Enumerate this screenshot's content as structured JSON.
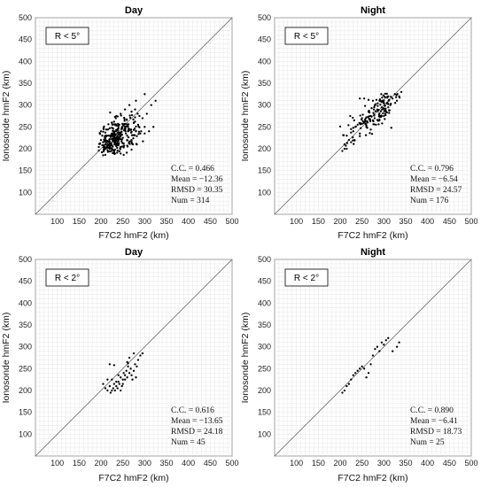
{
  "chart_data": [
    {
      "type": "scatter",
      "title": "Day",
      "xlabel": "F7C2 hmF2 (km)",
      "ylabel": "Ionosonde hmF2 (km)",
      "xlim": [
        50,
        500
      ],
      "ylim": [
        50,
        500
      ],
      "xticks": [
        "100",
        "150",
        "200",
        "250",
        "300",
        "350",
        "400",
        "450",
        "500"
      ],
      "yticks": [
        "100",
        "150",
        "200",
        "250",
        "300",
        "350",
        "400",
        "450",
        "500"
      ],
      "box_label": "R < 5°",
      "diagonal": "y = x",
      "grid": true,
      "stats": [
        "C.C. = 0.466",
        "Mean = −12.36",
        "RMSD = 30.35",
        "Num = 314"
      ],
      "n_points": 314,
      "cluster": {
        "x_range": [
          195,
          330
        ],
        "y_range": [
          185,
          330
        ],
        "center": [
          235,
          225
        ]
      },
      "points": [
        [
          215,
          215
        ],
        [
          220,
          205
        ],
        [
          225,
          230
        ],
        [
          230,
          220
        ],
        [
          235,
          240
        ],
        [
          240,
          210
        ],
        [
          245,
          235
        ],
        [
          250,
          225
        ],
        [
          255,
          250
        ],
        [
          260,
          230
        ],
        [
          265,
          245
        ],
        [
          270,
          220
        ],
        [
          275,
          260
        ],
        [
          280,
          240
        ],
        [
          285,
          255
        ],
        [
          290,
          235
        ],
        [
          295,
          270
        ],
        [
          300,
          250
        ],
        [
          305,
          280
        ],
        [
          310,
          240
        ],
        [
          315,
          300
        ],
        [
          320,
          250
        ],
        [
          325,
          310
        ],
        [
          230,
          195
        ],
        [
          210,
          230
        ],
        [
          205,
          215
        ],
        [
          200,
          240
        ],
        [
          225,
          260
        ],
        [
          235,
          275
        ],
        [
          245,
          280
        ],
        [
          255,
          290
        ],
        [
          265,
          300
        ],
        [
          270,
          285
        ],
        [
          280,
          310
        ],
        [
          300,
          325
        ],
        [
          228,
          222
        ],
        [
          232,
          218
        ],
        [
          222,
          212
        ],
        [
          238,
          228
        ],
        [
          242,
          232
        ]
      ]
    },
    {
      "type": "scatter",
      "title": "Night",
      "xlabel": "F7C2 hmF2 (km)",
      "ylabel": "Ionosonde hmF2 (km)",
      "xlim": [
        50,
        500
      ],
      "ylim": [
        50,
        500
      ],
      "xticks": [
        "100",
        "150",
        "200",
        "250",
        "300",
        "350",
        "400",
        "450",
        "500"
      ],
      "yticks": [
        "100",
        "150",
        "200",
        "250",
        "300",
        "350",
        "400",
        "450",
        "500"
      ],
      "box_label": "R < 5°",
      "diagonal": "y = x",
      "grid": true,
      "stats": [
        "C.C. = 0.796",
        "Mean = −6.54",
        "RMSD = 24.57",
        "Num = 176"
      ],
      "n_points": 176,
      "cluster": {
        "x_range": [
          200,
          345
        ],
        "y_range": [
          190,
          330
        ],
        "center": [
          280,
          280
        ]
      },
      "points": [
        [
          205,
          195
        ],
        [
          210,
          210
        ],
        [
          215,
          230
        ],
        [
          220,
          220
        ],
        [
          225,
          245
        ],
        [
          230,
          240
        ],
        [
          240,
          255
        ],
        [
          245,
          235
        ],
        [
          250,
          270
        ],
        [
          255,
          260
        ],
        [
          260,
          250
        ],
        [
          265,
          285
        ],
        [
          270,
          275
        ],
        [
          275,
          265
        ],
        [
          280,
          300
        ],
        [
          285,
          290
        ],
        [
          290,
          310
        ],
        [
          295,
          295
        ],
        [
          300,
          305
        ],
        [
          305,
          285
        ],
        [
          310,
          320
        ],
        [
          315,
          300
        ],
        [
          320,
          315
        ],
        [
          325,
          325
        ],
        [
          330,
          310
        ],
        [
          335,
          320
        ],
        [
          340,
          330
        ],
        [
          290,
          265
        ],
        [
          300,
          275
        ],
        [
          310,
          295
        ],
        [
          245,
          315
        ],
        [
          255,
          315
        ],
        [
          265,
          312
        ],
        [
          275,
          310
        ],
        [
          235,
          250
        ],
        [
          225,
          215
        ],
        [
          210,
          200
        ]
      ]
    },
    {
      "type": "scatter",
      "title": "Day",
      "xlabel": "F7C2 hmF2 (km)",
      "ylabel": "Ionosonde hmF2 (km)",
      "xlim": [
        50,
        500
      ],
      "ylim": [
        50,
        500
      ],
      "xticks": [
        "100",
        "150",
        "200",
        "250",
        "300",
        "350",
        "400",
        "450",
        "500"
      ],
      "yticks": [
        "100",
        "150",
        "200",
        "250",
        "300",
        "350",
        "400",
        "450",
        "500"
      ],
      "box_label": "R < 2°",
      "diagonal": "y = x",
      "grid": true,
      "stats": [
        "C.C. = 0.616",
        "Mean = −13.65",
        "RMSD = 24.18",
        "Num = 45"
      ],
      "n_points": 45,
      "points": [
        [
          205,
          215
        ],
        [
          210,
          205
        ],
        [
          215,
          200
        ],
        [
          220,
          210
        ],
        [
          222,
          195
        ],
        [
          225,
          225
        ],
        [
          228,
          205
        ],
        [
          230,
          215
        ],
        [
          232,
          200
        ],
        [
          235,
          210
        ],
        [
          238,
          205
        ],
        [
          240,
          220
        ],
        [
          242,
          215
        ],
        [
          245,
          230
        ],
        [
          248,
          210
        ],
        [
          250,
          225
        ],
        [
          252,
          240
        ],
        [
          255,
          235
        ],
        [
          258,
          245
        ],
        [
          260,
          230
        ],
        [
          262,
          255
        ],
        [
          265,
          240
        ],
        [
          268,
          250
        ],
        [
          270,
          235
        ],
        [
          272,
          225
        ],
        [
          275,
          245
        ],
        [
          278,
          260
        ],
        [
          280,
          230
        ],
        [
          282,
          255
        ],
        [
          285,
          270
        ],
        [
          290,
          280
        ],
        [
          295,
          285
        ],
        [
          265,
          275
        ],
        [
          260,
          265
        ],
        [
          220,
          260
        ],
        [
          230,
          258
        ],
        [
          215,
          225
        ],
        [
          225,
          200
        ],
        [
          235,
          220
        ],
        [
          245,
          200
        ],
        [
          250,
          215
        ],
        [
          255,
          225
        ],
        [
          240,
          235
        ],
        [
          275,
          285
        ],
        [
          262,
          262
        ]
      ]
    },
    {
      "type": "scatter",
      "title": "Night",
      "xlabel": "F7C2 hmF2 (km)",
      "ylabel": "Ionosonde hmF2 (km)",
      "xlim": [
        50,
        500
      ],
      "ylim": [
        50,
        500
      ],
      "xticks": [
        "100",
        "150",
        "200",
        "250",
        "300",
        "350",
        "400",
        "450",
        "500"
      ],
      "yticks": [
        "100",
        "150",
        "200",
        "250",
        "300",
        "350",
        "400",
        "450",
        "500"
      ],
      "box_label": "R < 2°",
      "diagonal": "y = x",
      "grid": true,
      "stats": [
        "C.C. = 0.890",
        "Mean = −6.41",
        "RMSD = 18.73",
        "Num = 25"
      ],
      "n_points": 25,
      "points": [
        [
          205,
          195
        ],
        [
          210,
          200
        ],
        [
          215,
          210
        ],
        [
          220,
          215
        ],
        [
          225,
          225
        ],
        [
          230,
          235
        ],
        [
          235,
          240
        ],
        [
          240,
          245
        ],
        [
          245,
          250
        ],
        [
          250,
          255
        ],
        [
          255,
          250
        ],
        [
          260,
          230
        ],
        [
          265,
          240
        ],
        [
          270,
          260
        ],
        [
          275,
          280
        ],
        [
          280,
          295
        ],
        [
          285,
          300
        ],
        [
          290,
          290
        ],
        [
          295,
          310
        ],
        [
          300,
          305
        ],
        [
          305,
          315
        ],
        [
          310,
          320
        ],
        [
          320,
          290
        ],
        [
          330,
          300
        ],
        [
          335,
          310
        ]
      ]
    }
  ]
}
